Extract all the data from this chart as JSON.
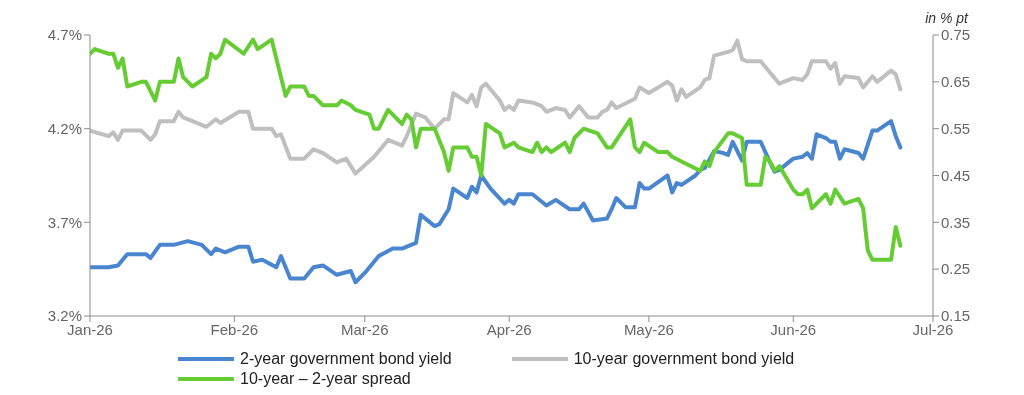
{
  "chart_data": {
    "type": "line",
    "y2label": "in % pt",
    "legend": "bottom",
    "line_style": "solid",
    "marker": "none",
    "grid": false,
    "xlim": [
      "2026-01-01",
      "2026-07-01"
    ],
    "xticks": [
      {
        "value": "2026-01-01",
        "label": "Jan-26"
      },
      {
        "value": "2026-02-01",
        "label": "Feb-26"
      },
      {
        "value": "2026-03-01",
        "label": "Mar-26"
      },
      {
        "value": "2026-04-01",
        "label": "Apr-26"
      },
      {
        "value": "2026-05-01",
        "label": "May-26"
      },
      {
        "value": "2026-06-01",
        "label": "Jun-26"
      },
      {
        "value": "2026-07-01",
        "label": "Jul-26"
      }
    ],
    "ylim": [
      3.2,
      4.7
    ],
    "yticks": [
      {
        "value": 3.2,
        "label": "3.2%"
      },
      {
        "value": 3.7,
        "label": "3.7%"
      },
      {
        "value": 4.2,
        "label": "4.2%"
      },
      {
        "value": 4.7,
        "label": "4.7%"
      }
    ],
    "y2lim": [
      0.15,
      0.75
    ],
    "y2ticks": [
      0.15,
      0.25,
      0.35,
      0.45,
      0.55,
      0.65,
      0.75
    ],
    "series": [
      {
        "name": "2-year government bond yield",
        "color": "#4a86d0",
        "x": [
          "2026-01-01",
          "2026-01-05",
          "2026-01-07",
          "2026-01-09",
          "2026-01-13",
          "2026-01-14",
          "2026-01-16",
          "2026-01-19",
          "2026-01-22",
          "2026-01-25",
          "2026-01-27",
          "2026-01-28",
          "2026-01-30",
          "2026-02-02",
          "2026-02-04",
          "2026-02-05",
          "2026-02-07",
          "2026-02-10",
          "2026-02-11",
          "2026-02-13",
          "2026-02-16",
          "2026-02-18",
          "2026-02-20",
          "2026-02-23",
          "2026-02-26",
          "2026-02-27",
          "2026-03-01",
          "2026-03-04",
          "2026-03-07",
          "2026-03-09",
          "2026-03-12",
          "2026-03-13",
          "2026-03-16",
          "2026-03-17",
          "2026-03-19",
          "2026-03-20",
          "2026-03-23",
          "2026-03-24",
          "2026-03-25",
          "2026-03-26",
          "2026-03-28",
          "2026-03-31",
          "2026-04-01",
          "2026-04-02",
          "2026-04-03",
          "2026-04-06",
          "2026-04-09",
          "2026-04-11",
          "2026-04-14",
          "2026-04-16",
          "2026-04-17",
          "2026-04-19",
          "2026-04-22",
          "2026-04-23",
          "2026-04-24",
          "2026-04-26",
          "2026-04-28",
          "2026-04-29",
          "2026-04-30",
          "2026-05-01",
          "2026-05-05",
          "2026-05-06",
          "2026-05-07",
          "2026-05-08",
          "2026-05-11",
          "2026-05-12",
          "2026-05-13",
          "2026-05-15",
          "2026-05-17",
          "2026-05-18",
          "2026-05-19",
          "2026-05-21",
          "2026-05-22",
          "2026-05-25",
          "2026-05-27",
          "2026-05-28",
          "2026-05-29",
          "2026-06-01",
          "2026-06-03",
          "2026-06-04",
          "2026-06-05",
          "2026-06-06",
          "2026-06-08",
          "2026-06-09",
          "2026-06-10",
          "2026-06-11",
          "2026-06-12",
          "2026-06-15",
          "2026-06-16",
          "2026-06-18",
          "2026-06-19",
          "2026-06-22",
          "2026-06-23",
          "2026-06-24"
        ],
        "values": [
          3.46,
          3.46,
          3.47,
          3.53,
          3.53,
          3.51,
          3.58,
          3.58,
          3.6,
          3.58,
          3.53,
          3.56,
          3.54,
          3.57,
          3.57,
          3.49,
          3.5,
          3.46,
          3.52,
          3.4,
          3.4,
          3.46,
          3.47,
          3.42,
          3.44,
          3.38,
          3.43,
          3.52,
          3.56,
          3.56,
          3.59,
          3.74,
          3.68,
          3.69,
          3.77,
          3.88,
          3.83,
          3.89,
          3.86,
          3.95,
          3.88,
          3.8,
          3.82,
          3.8,
          3.85,
          3.85,
          3.79,
          3.82,
          3.77,
          3.77,
          3.8,
          3.71,
          3.72,
          3.77,
          3.83,
          3.78,
          3.78,
          3.91,
          3.88,
          3.88,
          3.95,
          3.86,
          3.91,
          3.9,
          3.95,
          3.98,
          3.99,
          4.08,
          4.07,
          4.06,
          4.13,
          4.03,
          4.13,
          4.13,
          4.02,
          3.97,
          3.98,
          4.04,
          4.05,
          4.07,
          4.04,
          4.17,
          4.15,
          4.13,
          4.13,
          4.04,
          4.09,
          4.07,
          4.04,
          4.19,
          4.19,
          4.24,
          4.16,
          4.1
        ]
      },
      {
        "name": "10-year government bond yield",
        "color": "#bfbfbf",
        "x": [
          "2026-01-01",
          "2026-01-05",
          "2026-01-06",
          "2026-01-07",
          "2026-01-08",
          "2026-01-12",
          "2026-01-14",
          "2026-01-15",
          "2026-01-16",
          "2026-01-19",
          "2026-01-20",
          "2026-01-21",
          "2026-01-26",
          "2026-01-28",
          "2026-01-29",
          "2026-02-02",
          "2026-02-04",
          "2026-02-05",
          "2026-02-09",
          "2026-02-10",
          "2026-02-11",
          "2026-02-13",
          "2026-02-16",
          "2026-02-18",
          "2026-02-20",
          "2026-02-23",
          "2026-02-25",
          "2026-02-27",
          "2026-03-03",
          "2026-03-06",
          "2026-03-09",
          "2026-03-10",
          "2026-03-12",
          "2026-03-14",
          "2026-03-16",
          "2026-03-18",
          "2026-03-19",
          "2026-03-20",
          "2026-03-23",
          "2026-03-24",
          "2026-03-25",
          "2026-03-26",
          "2026-03-27",
          "2026-03-30",
          "2026-03-31",
          "2026-04-01",
          "2026-04-02",
          "2026-04-03",
          "2026-04-06",
          "2026-04-08",
          "2026-04-09",
          "2026-04-11",
          "2026-04-13",
          "2026-04-14",
          "2026-04-16",
          "2026-04-18",
          "2026-04-20",
          "2026-04-21",
          "2026-04-22",
          "2026-04-23",
          "2026-04-24",
          "2026-04-28",
          "2026-04-29",
          "2026-05-01",
          "2026-05-05",
          "2026-05-06",
          "2026-05-07",
          "2026-05-08",
          "2026-05-09",
          "2026-05-12",
          "2026-05-13",
          "2026-05-14",
          "2026-05-15",
          "2026-05-18",
          "2026-05-19",
          "2026-05-20",
          "2026-05-21",
          "2026-05-22",
          "2026-05-25",
          "2026-05-27",
          "2026-05-29",
          "2026-06-01",
          "2026-06-03",
          "2026-06-04",
          "2026-06-05",
          "2026-06-08",
          "2026-06-09",
          "2026-06-10",
          "2026-06-11",
          "2026-06-12",
          "2026-06-15",
          "2026-06-16",
          "2026-06-18",
          "2026-06-19",
          "2026-06-22",
          "2026-06-23",
          "2026-06-24"
        ],
        "values": [
          4.19,
          4.16,
          4.18,
          4.14,
          4.19,
          4.19,
          4.14,
          4.17,
          4.24,
          4.24,
          4.29,
          4.26,
          4.21,
          4.25,
          4.23,
          4.29,
          4.29,
          4.2,
          4.2,
          4.16,
          4.17,
          4.04,
          4.04,
          4.09,
          4.07,
          4.02,
          4.04,
          3.96,
          4.05,
          4.14,
          4.11,
          4.16,
          4.28,
          4.26,
          4.2,
          4.25,
          4.25,
          4.39,
          4.34,
          4.38,
          4.32,
          4.42,
          4.44,
          4.35,
          4.3,
          4.32,
          4.3,
          4.35,
          4.34,
          4.32,
          4.29,
          4.31,
          4.3,
          4.26,
          4.32,
          4.26,
          4.26,
          4.29,
          4.3,
          4.34,
          4.31,
          4.36,
          4.42,
          4.39,
          4.45,
          4.43,
          4.35,
          4.41,
          4.37,
          4.42,
          4.46,
          4.47,
          4.59,
          4.61,
          4.62,
          4.67,
          4.57,
          4.56,
          4.56,
          4.5,
          4.44,
          4.47,
          4.46,
          4.49,
          4.56,
          4.56,
          4.52,
          4.55,
          4.44,
          4.48,
          4.47,
          4.42,
          4.48,
          4.45,
          4.51,
          4.49,
          4.41
        ]
      },
      {
        "name": "10-year – 2-year spread",
        "color": "#66cc33",
        "axis": "y2",
        "x": [
          "2026-01-01",
          "2026-01-02",
          "2026-01-05",
          "2026-01-06",
          "2026-01-07",
          "2026-01-08",
          "2026-01-09",
          "2026-01-12",
          "2026-01-13",
          "2026-01-15",
          "2026-01-16",
          "2026-01-19",
          "2026-01-20",
          "2026-01-21",
          "2026-01-23",
          "2026-01-26",
          "2026-01-27",
          "2026-01-28",
          "2026-01-29",
          "2026-01-30",
          "2026-02-03",
          "2026-02-05",
          "2026-02-06",
          "2026-02-09",
          "2026-02-12",
          "2026-02-13",
          "2026-02-16",
          "2026-02-17",
          "2026-02-18",
          "2026-02-20",
          "2026-02-23",
          "2026-02-24",
          "2026-02-26",
          "2026-02-27",
          "2026-03-02",
          "2026-03-03",
          "2026-03-04",
          "2026-03-06",
          "2026-03-09",
          "2026-03-10",
          "2026-03-11",
          "2026-03-12",
          "2026-03-13",
          "2026-03-16",
          "2026-03-18",
          "2026-03-19",
          "2026-03-20",
          "2026-03-23",
          "2026-03-24",
          "2026-03-25",
          "2026-03-26",
          "2026-03-27",
          "2026-03-30",
          "2026-03-31",
          "2026-04-02",
          "2026-04-03",
          "2026-04-06",
          "2026-04-07",
          "2026-04-08",
          "2026-04-09",
          "2026-04-10",
          "2026-04-13",
          "2026-04-14",
          "2026-04-15",
          "2026-04-17",
          "2026-04-20",
          "2026-04-22",
          "2026-04-23",
          "2026-04-25",
          "2026-04-27",
          "2026-04-28",
          "2026-04-29",
          "2026-04-30",
          "2026-05-03",
          "2026-05-05",
          "2026-05-06",
          "2026-05-08",
          "2026-05-12",
          "2026-05-13",
          "2026-05-14",
          "2026-05-15",
          "2026-05-18",
          "2026-05-19",
          "2026-05-21",
          "2026-05-22",
          "2026-05-25",
          "2026-05-26",
          "2026-05-27",
          "2026-05-28",
          "2026-05-29",
          "2026-06-01",
          "2026-06-02",
          "2026-06-03",
          "2026-06-04",
          "2026-06-05",
          "2026-06-08",
          "2026-06-09",
          "2026-06-10",
          "2026-06-12",
          "2026-06-15",
          "2026-06-16",
          "2026-06-17",
          "2026-06-18",
          "2026-06-22",
          "2026-06-23",
          "2026-06-24"
        ],
        "values": [
          0.71,
          0.72,
          0.71,
          0.71,
          0.68,
          0.7,
          0.64,
          0.65,
          0.65,
          0.61,
          0.65,
          0.65,
          0.7,
          0.66,
          0.64,
          0.66,
          0.71,
          0.7,
          0.71,
          0.74,
          0.71,
          0.74,
          0.72,
          0.74,
          0.62,
          0.64,
          0.64,
          0.62,
          0.62,
          0.6,
          0.6,
          0.61,
          0.6,
          0.59,
          0.58,
          0.55,
          0.55,
          0.59,
          0.56,
          0.58,
          0.57,
          0.51,
          0.55,
          0.55,
          0.5,
          0.46,
          0.51,
          0.51,
          0.49,
          0.49,
          0.45,
          0.56,
          0.54,
          0.51,
          0.52,
          0.51,
          0.5,
          0.52,
          0.5,
          0.51,
          0.5,
          0.52,
          0.5,
          0.53,
          0.55,
          0.54,
          0.51,
          0.51,
          0.54,
          0.57,
          0.51,
          0.5,
          0.52,
          0.5,
          0.5,
          0.49,
          0.48,
          0.46,
          0.48,
          0.47,
          0.5,
          0.54,
          0.54,
          0.53,
          0.43,
          0.43,
          0.49,
          0.48,
          0.46,
          0.47,
          0.42,
          0.41,
          0.41,
          0.42,
          0.38,
          0.41,
          0.39,
          0.42,
          0.39,
          0.4,
          0.38,
          0.29,
          0.27,
          0.27,
          0.34,
          0.3
        ]
      }
    ]
  }
}
